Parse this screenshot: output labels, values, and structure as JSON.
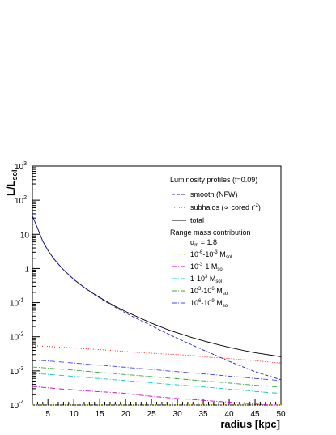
{
  "chart_data": {
    "type": "line",
    "title": "",
    "xlabel": "radius [kpc]",
    "ylabel": "L/L",
    "ylabel_sub": "sol",
    "xlim": [
      2,
      50
    ],
    "ylim": [
      0.0001,
      1000
    ],
    "yscale": "log",
    "x_ticks": [
      5,
      10,
      15,
      20,
      25,
      30,
      35,
      40,
      45,
      50
    ],
    "x_tick_labels": [
      "5",
      "10",
      "15",
      "20",
      "25",
      "30",
      "35",
      "40",
      "45",
      "50"
    ],
    "y_ticks": [
      {
        "value": 0.0001,
        "base": "10",
        "exp": "-4"
      },
      {
        "value": 0.001,
        "base": "10",
        "exp": "-3"
      },
      {
        "value": 0.01,
        "base": "10",
        "exp": "-2"
      },
      {
        "value": 0.1,
        "base": "10",
        "exp": "-1"
      },
      {
        "value": 1,
        "base": "1",
        "exp": ""
      },
      {
        "value": 10,
        "base": "10",
        "exp": ""
      },
      {
        "value": 100,
        "base": "10",
        "exp": "2"
      },
      {
        "value": 1000,
        "base": "10",
        "exp": "3"
      }
    ],
    "legend": {
      "placement": "top-right",
      "header": "Luminosity profiles (f=0.09)",
      "section_header": "Range mass contribution",
      "alpha_label": "α",
      "alpha_sub": "m",
      "alpha_value": " = 1.8",
      "entries": {
        "smooth": "smooth (NFW)",
        "subhalos_main": "subhalos (∝ cored r",
        "subhalos_exp": "-2",
        "subhalos_end": ")",
        "total": "total",
        "r1_a": "10",
        "r1_a_exp": "-6",
        "r1_b": "-10",
        "r1_b_exp": "-3",
        "r1_unit": " M",
        "r1_sub": "sol",
        "r2_a": "10",
        "r2_a_exp": "-3",
        "r2_b": "-1 M",
        "r2_sub": "sol",
        "r3_a": "1-10",
        "r3_a_exp": "3",
        "r3_unit": " M",
        "r3_sub": "sol",
        "r4_a": "10",
        "r4_a_exp": "3",
        "r4_b": "-10",
        "r4_b_exp": "6",
        "r4_unit": " M",
        "r4_sub": "sol",
        "r5_a": "10",
        "r5_a_exp": "6",
        "r5_b": "-10",
        "r5_b_exp": "9",
        "r5_unit": " M",
        "r5_sub": "sol"
      }
    },
    "x": [
      2,
      3,
      4,
      5,
      6,
      7,
      8,
      10,
      12,
      14,
      16,
      18,
      20,
      22,
      25,
      28,
      30,
      33,
      35,
      38,
      40,
      43,
      45,
      48,
      50
    ],
    "series": [
      {
        "key": "total",
        "color": "#000000",
        "dash": "",
        "values": [
          35,
          15,
          6.3,
          3.4,
          2.05,
          1.35,
          0.92,
          0.48,
          0.28,
          0.175,
          0.115,
          0.078,
          0.055,
          0.04,
          0.025,
          0.0165,
          0.013,
          0.0093,
          0.0076,
          0.0058,
          0.0049,
          0.0039,
          0.0034,
          0.0029,
          0.0026
        ]
      },
      {
        "key": "smooth",
        "color": "#2020c0",
        "dash": "4,2",
        "values": [
          35,
          15,
          6.3,
          3.4,
          2.05,
          1.35,
          0.92,
          0.475,
          0.275,
          0.17,
          0.11,
          0.073,
          0.05,
          0.035,
          0.021,
          0.0125,
          0.009,
          0.0056,
          0.0041,
          0.0026,
          0.0019,
          0.00125,
          0.00095,
          0.00068,
          0.00055
        ]
      },
      {
        "key": "subhalos",
        "color": "#ff0000",
        "dash": "1,2",
        "values": [
          0.0055,
          0.0054,
          0.0053,
          0.0052,
          0.0051,
          0.005,
          0.0049,
          0.0047,
          0.0045,
          0.0043,
          0.0041,
          0.0039,
          0.0037,
          0.0035,
          0.0033,
          0.0031,
          0.003,
          0.0028,
          0.0026,
          0.0024,
          0.0023,
          0.0021,
          0.002,
          0.0018,
          0.0017
        ]
      },
      {
        "key": "r5",
        "color": "#4040ff",
        "dash": "6,2,1,2",
        "values": [
          0.0021,
          0.00205,
          0.002,
          0.00195,
          0.0019,
          0.00185,
          0.0018,
          0.0017,
          0.0016,
          0.0015,
          0.00143,
          0.00135,
          0.00127,
          0.0012,
          0.0011,
          0.001,
          0.00095,
          0.00087,
          0.00082,
          0.00075,
          0.0007,
          0.00064,
          0.0006,
          0.00055,
          0.00052
        ]
      },
      {
        "key": "r4",
        "color": "#33aa33",
        "dash": "6,2,1,2",
        "values": [
          0.0013,
          0.00127,
          0.00124,
          0.0012,
          0.00117,
          0.00114,
          0.00111,
          0.00105,
          0.00099,
          0.00093,
          0.00088,
          0.00083,
          0.00078,
          0.00074,
          0.00068,
          0.00062,
          0.00059,
          0.00054,
          0.00051,
          0.00047,
          0.00044,
          0.0004,
          0.00038,
          0.00035,
          0.00033
        ]
      },
      {
        "key": "r3",
        "color": "#00cccc",
        "dash": "6,2,1,2",
        "values": [
          0.00085,
          0.00083,
          0.00081,
          0.00079,
          0.00077,
          0.00075,
          0.00073,
          0.00069,
          0.00065,
          0.00061,
          0.00058,
          0.00055,
          0.00052,
          0.00049,
          0.00045,
          0.00041,
          0.00039,
          0.00036,
          0.00034,
          0.00031,
          0.00029,
          0.00027,
          0.00025,
          0.00023,
          0.00022
        ]
      },
      {
        "key": "r2",
        "color": "#cc00cc",
        "dash": "6,2,1,2",
        "values": [
          0.00035,
          0.00034,
          0.00033,
          0.00032,
          0.00031,
          0.0003,
          0.00029,
          0.00028,
          0.00026,
          0.00025,
          0.00024,
          0.00023,
          0.00022,
          0.0002,
          0.00018,
          0.000165,
          0.000155,
          0.000145,
          0.000137,
          0.000127,
          0.000121,
          0.000112,
          0.000107,
          0.0001,
          0.0001
        ]
      },
      {
        "key": "r1",
        "color": "#dddd00",
        "dash": "1,2",
        "values": [
          0.0001,
          0.0001,
          0.0001,
          0.0001,
          0.0001,
          0.0001,
          0.0001,
          0.0001,
          0.0001,
          0.0001,
          0.0001,
          0.0001,
          0.0001,
          0.0001,
          0.0001,
          0.0001,
          0.0001,
          0.0001,
          0.0001,
          0.0001,
          0.0001,
          0.0001,
          0.0001,
          0.0001,
          0.0001
        ]
      }
    ]
  }
}
